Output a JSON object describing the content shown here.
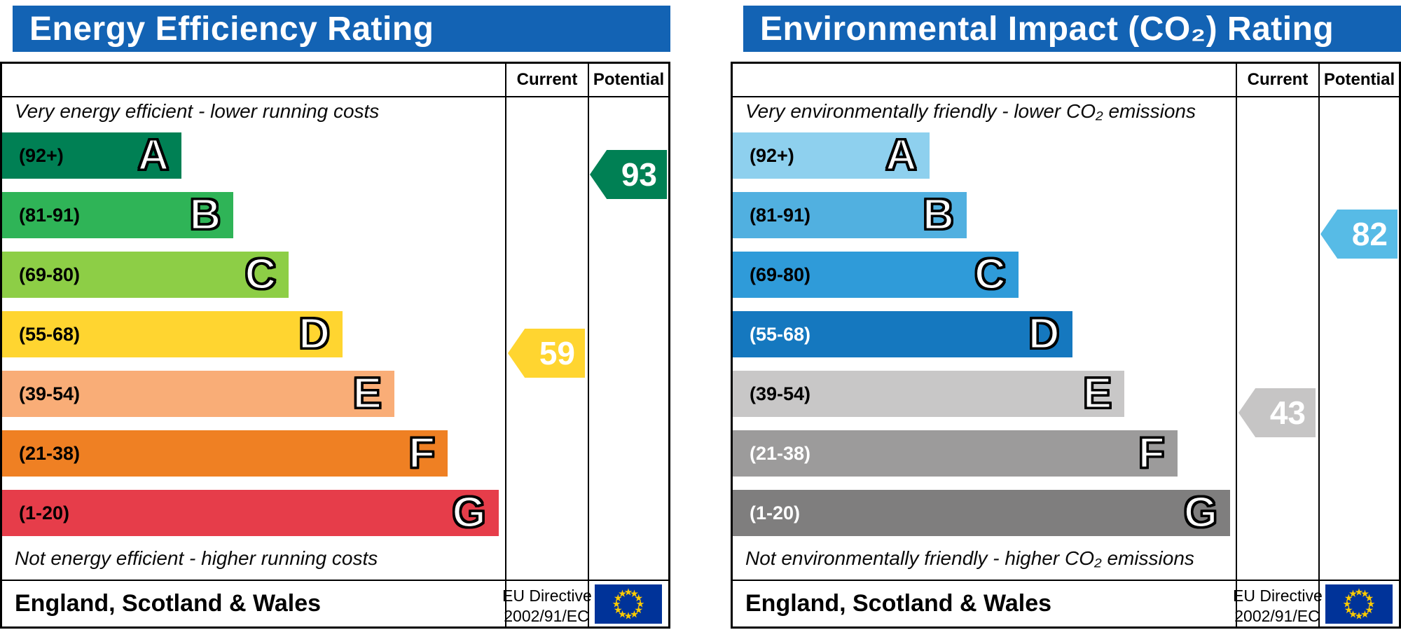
{
  "colors": {
    "header_bg": "#1363b4",
    "table_border": "#000000",
    "flag_bg": "#003399",
    "flag_stars": "#ffcc00"
  },
  "panels": [
    {
      "title": "Energy Efficiency Rating",
      "columns": {
        "current": "Current",
        "potential": "Potential"
      },
      "top_note": "Very energy efficient - lower running costs",
      "bottom_note": "Not energy efficient - higher running costs",
      "bands": [
        {
          "letter": "A",
          "range": "(92+)",
          "color": "#008054",
          "label_color": "#000000",
          "width_pct": 35.7
        },
        {
          "letter": "B",
          "range": "(81-91)",
          "color": "#2fb457",
          "label_color": "#000000",
          "width_pct": 46.0
        },
        {
          "letter": "C",
          "range": "(69-80)",
          "color": "#8dce46",
          "label_color": "#000000",
          "width_pct": 57.0
        },
        {
          "letter": "D",
          "range": "(55-68)",
          "color": "#ffd530",
          "label_color": "#000000",
          "width_pct": 67.7
        },
        {
          "letter": "E",
          "range": "(39-54)",
          "color": "#f9ad77",
          "label_color": "#000000",
          "width_pct": 78.0
        },
        {
          "letter": "F",
          "range": "(21-38)",
          "color": "#ef8023",
          "label_color": "#000000",
          "width_pct": 88.6
        },
        {
          "letter": "G",
          "range": "(1-20)",
          "color": "#e63d4a",
          "label_color": "#000000",
          "width_pct": 98.7
        }
      ],
      "current": {
        "value": "59",
        "band_index": 3,
        "color": "#ffd530"
      },
      "potential": {
        "value": "93",
        "band_index": 0,
        "color": "#008054"
      },
      "footer": {
        "region": "England, Scotland & Wales",
        "directive_line1": "EU Directive",
        "directive_line2": "2002/91/EC"
      }
    },
    {
      "title": "Environmental Impact (CO₂) Rating",
      "columns": {
        "current": "Current",
        "potential": "Potential"
      },
      "top_note": "Very environmentally friendly - lower CO₂ emissions",
      "bottom_note": "Not environmentally friendly - higher CO₂ emissions",
      "bands": [
        {
          "letter": "A",
          "range": "(92+)",
          "color": "#8ed0ee",
          "label_color": "#000000",
          "width_pct": 39.1
        },
        {
          "letter": "B",
          "range": "(81-91)",
          "color": "#51b0e0",
          "label_color": "#000000",
          "width_pct": 46.5
        },
        {
          "letter": "C",
          "range": "(69-80)",
          "color": "#2f9bd9",
          "label_color": "#000000",
          "width_pct": 56.8
        },
        {
          "letter": "D",
          "range": "(55-68)",
          "color": "#1578bf",
          "label_color": "#ffffff",
          "width_pct": 67.5
        },
        {
          "letter": "E",
          "range": "(39-54)",
          "color": "#c8c7c7",
          "label_color": "#000000",
          "width_pct": 77.9
        },
        {
          "letter": "F",
          "range": "(21-38)",
          "color": "#9c9b9b",
          "label_color": "#ffffff",
          "width_pct": 88.4
        },
        {
          "letter": "G",
          "range": "(1-20)",
          "color": "#7f7e7e",
          "label_color": "#ffffff",
          "width_pct": 98.9
        }
      ],
      "current": {
        "value": "43",
        "band_index": 4,
        "color": "#c6c5c5"
      },
      "potential": {
        "value": "82",
        "band_index": 1,
        "color": "#57bbe6"
      },
      "footer": {
        "region": "England, Scotland & Wales",
        "directive_line1": "EU Directive",
        "directive_line2": "2002/91/EC"
      }
    }
  ],
  "chart_data": [
    {
      "type": "bar",
      "title": "Energy Efficiency Rating",
      "categories": [
        "A (92+)",
        "B (81-91)",
        "C (69-80)",
        "D (55-68)",
        "E (39-54)",
        "F (21-38)",
        "G (1-20)"
      ],
      "series": [
        {
          "name": "Current",
          "value": 59,
          "band": "D"
        },
        {
          "name": "Potential",
          "value": 93,
          "band": "A"
        }
      ],
      "scale_range": [
        1,
        100
      ],
      "top_annotation": "Very energy efficient - lower running costs",
      "bottom_annotation": "Not energy efficient - higher running costs",
      "footer": "England, Scotland & Wales - EU Directive 2002/91/EC"
    },
    {
      "type": "bar",
      "title": "Environmental Impact (CO₂) Rating",
      "categories": [
        "A (92+)",
        "B (81-91)",
        "C (69-80)",
        "D (55-68)",
        "E (39-54)",
        "F (21-38)",
        "G (1-20)"
      ],
      "series": [
        {
          "name": "Current",
          "value": 43,
          "band": "E"
        },
        {
          "name": "Potential",
          "value": 82,
          "band": "B"
        }
      ],
      "scale_range": [
        1,
        100
      ],
      "top_annotation": "Very environmentally friendly - lower CO₂ emissions",
      "bottom_annotation": "Not environmentally friendly - higher CO₂ emissions",
      "footer": "England, Scotland & Wales - EU Directive 2002/91/EC"
    }
  ]
}
